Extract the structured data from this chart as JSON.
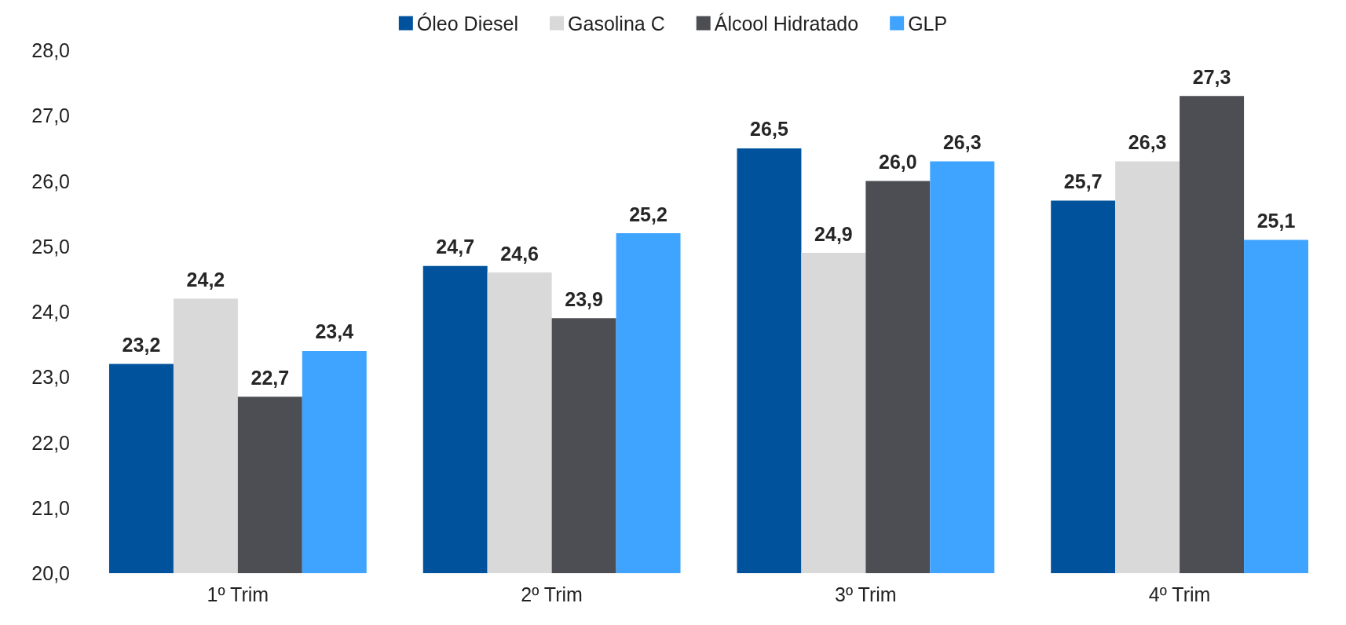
{
  "chart_data": {
    "type": "bar",
    "categories": [
      "1º Trim",
      "2º Trim",
      "3º Trim",
      "4º Trim"
    ],
    "series": [
      {
        "name": "Óleo Diesel",
        "color": "#00529c",
        "values": [
          23.2,
          24.7,
          26.5,
          25.7
        ],
        "value_labels": [
          "23,2",
          "24,7",
          "26,5",
          "25,7"
        ]
      },
      {
        "name": "Gasolina C",
        "color": "#d9d9d9",
        "values": [
          24.2,
          24.6,
          24.9,
          26.3
        ],
        "value_labels": [
          "24,2",
          "24,6",
          "24,9",
          "26,3"
        ]
      },
      {
        "name": "Álcool Hidratado",
        "color": "#4d4e53",
        "values": [
          22.7,
          23.9,
          26.0,
          27.3
        ],
        "value_labels": [
          "22,7",
          "23,9",
          "26,0",
          "27,3"
        ]
      },
      {
        "name": "GLP",
        "color": "#3fa4ff",
        "values": [
          23.4,
          25.2,
          26.3,
          25.1
        ],
        "value_labels": [
          "23,4",
          "25,2",
          "26,3",
          "25,1"
        ]
      }
    ],
    "ylim": [
      20,
      28
    ],
    "yticks": [
      {
        "value": 20,
        "label": "20,0"
      },
      {
        "value": 21,
        "label": "21,0"
      },
      {
        "value": 22,
        "label": "22,0"
      },
      {
        "value": 23,
        "label": "23,0"
      },
      {
        "value": 24,
        "label": "24,0"
      },
      {
        "value": 25,
        "label": "25,0"
      },
      {
        "value": 26,
        "label": "26,0"
      },
      {
        "value": 27,
        "label": "27,0"
      },
      {
        "value": 28,
        "label": "28,0"
      }
    ],
    "grid": false,
    "legend": "top"
  }
}
